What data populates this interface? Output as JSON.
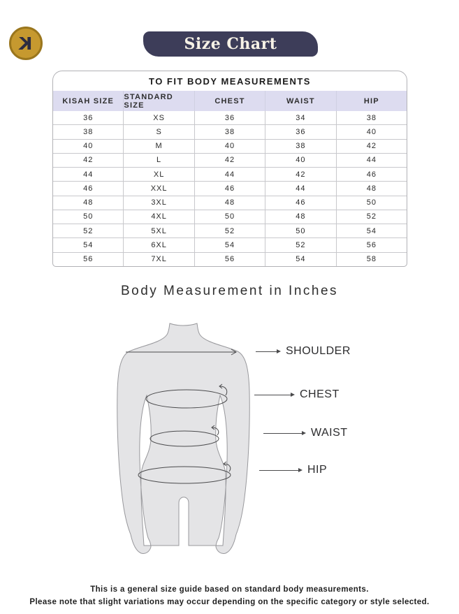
{
  "brand": {
    "logo_letter": "K"
  },
  "header": {
    "title": "Size Chart"
  },
  "table": {
    "title": "TO FIT BODY MEASUREMENTS",
    "columns": [
      "KISAH SIZE",
      "STANDARD SIZE",
      "CHEST",
      "WAIST",
      "HIP"
    ],
    "rows": [
      [
        "36",
        "XS",
        "36",
        "34",
        "38"
      ],
      [
        "38",
        "S",
        "38",
        "36",
        "40"
      ],
      [
        "40",
        "M",
        "40",
        "38",
        "42"
      ],
      [
        "42",
        "L",
        "42",
        "40",
        "44"
      ],
      [
        "44",
        "XL",
        "44",
        "42",
        "46"
      ],
      [
        "46",
        "XXL",
        "46",
        "44",
        "48"
      ],
      [
        "48",
        "3XL",
        "48",
        "46",
        "50"
      ],
      [
        "50",
        "4XL",
        "50",
        "48",
        "52"
      ],
      [
        "52",
        "5XL",
        "52",
        "50",
        "54"
      ],
      [
        "54",
        "6XL",
        "54",
        "52",
        "56"
      ],
      [
        "56",
        "7XL",
        "56",
        "54",
        "58"
      ]
    ]
  },
  "diagram": {
    "heading": "Body Measurement in Inches",
    "labels": [
      "SHOULDER",
      "CHEST",
      "WAIST",
      "HIP"
    ]
  },
  "footer": {
    "line1": "This is a general size guide based on standard body measurements.",
    "line2": "Please note that slight variations may occur depending on the specific category or style selected."
  },
  "colors": {
    "banner_bg": "#3d3d59",
    "banner_text": "#f7f2e6",
    "table_header_bg": "#dddcf0",
    "table_border": "#b2b2b6",
    "logo_gold": "#c6992f",
    "logo_rim": "#9a761d",
    "logo_letter_color": "#2d2c41",
    "silhouette_fill": "#e4e4e6",
    "silhouette_stroke": "#98989c",
    "measure_line": "#4a4a4c"
  }
}
